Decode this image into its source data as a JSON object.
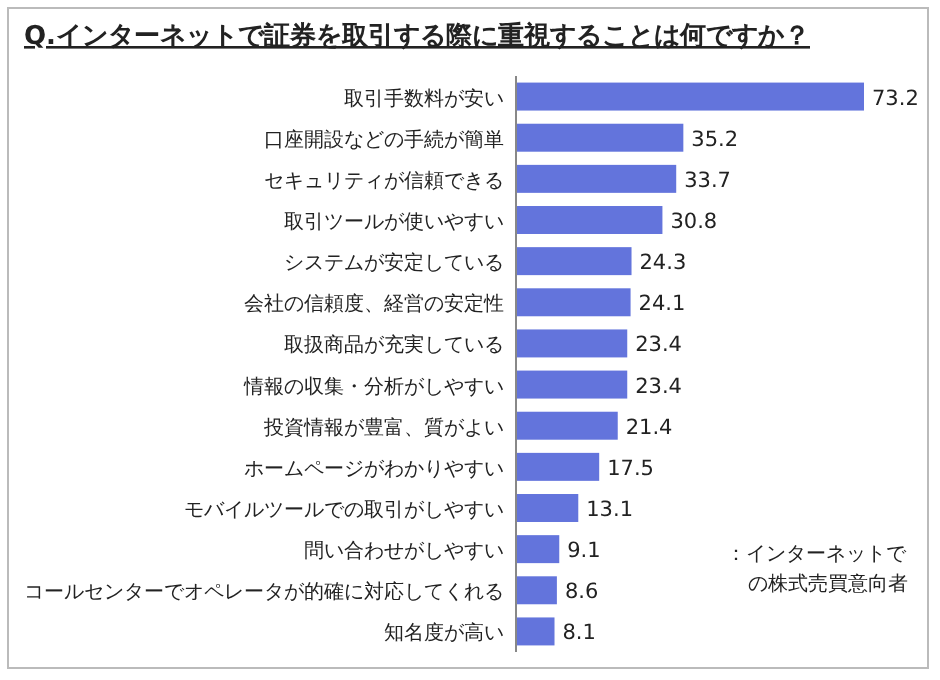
{
  "chart_data": {
    "type": "bar",
    "orientation": "horizontal",
    "title": "Q.インターネットで証券を取引する際に重視することは何ですか？",
    "categories": [
      "取引手数料が安い",
      "口座開設などの手続が簡単",
      "セキュリティが信頼できる",
      "取引ツールが使いやすい",
      "システムが安定している",
      "会社の信頼度、経営の安定性",
      "取扱商品が充実している",
      "情報の収集・分析がしやすい",
      "投資情報が豊富、質がよい",
      "ホームページがわかりやすい",
      "モバイルツールでの取引がしやすい",
      "問い合わせがしやすい",
      "コールセンターでオペレータが的確に対応してくれる",
      "知名度が高い"
    ],
    "values": [
      73.2,
      35.2,
      33.7,
      30.8,
      24.3,
      24.1,
      23.4,
      23.4,
      21.4,
      17.5,
      13.1,
      9.1,
      8.6,
      8.1
    ],
    "color": "#6374dc",
    "data_labels": true,
    "annotations": [
      "：インターネットでの株式売買意向者"
    ]
  }
}
